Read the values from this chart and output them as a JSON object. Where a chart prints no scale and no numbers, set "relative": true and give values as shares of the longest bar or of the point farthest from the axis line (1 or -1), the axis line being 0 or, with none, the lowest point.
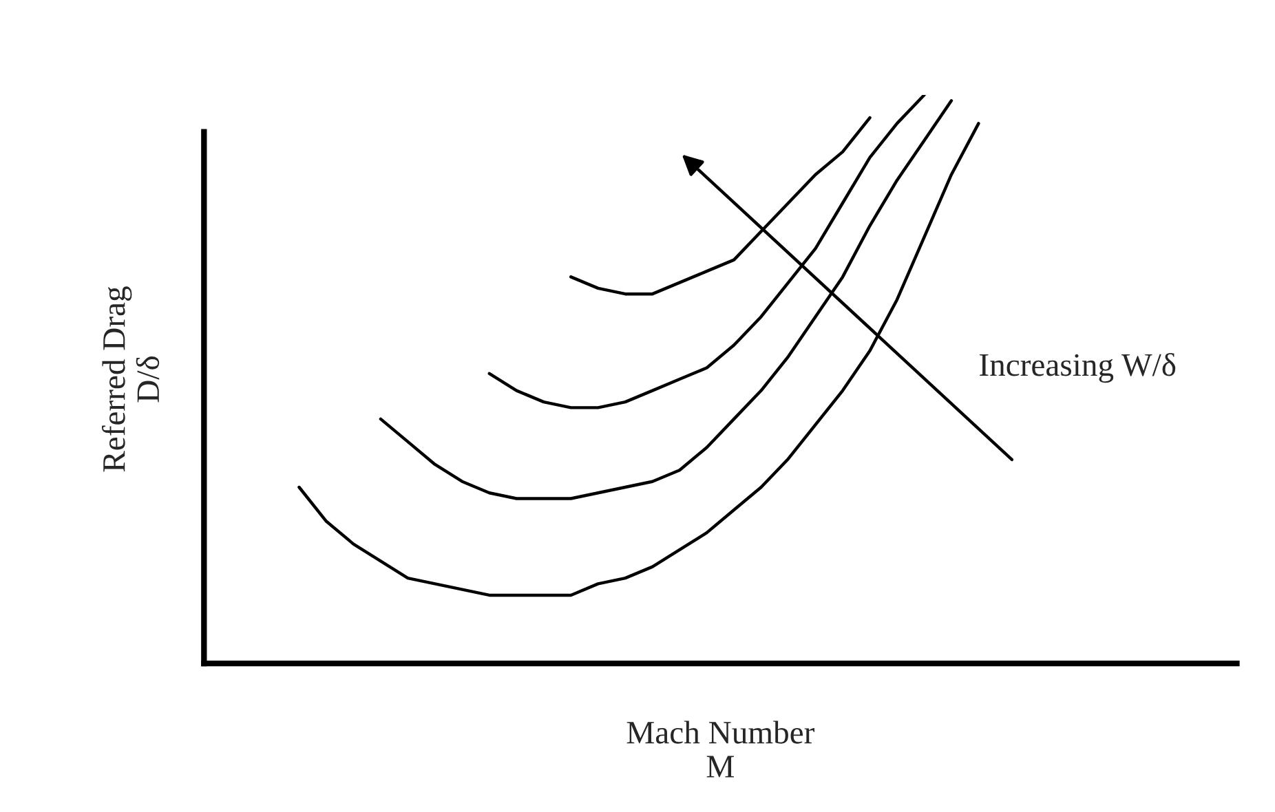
{
  "chart_data": {
    "type": "line",
    "relative": true,
    "xlabel": "Mach Number\nM",
    "ylabel": "Referred Drag\nD/δ",
    "annotations": [
      "Increasing W/δ"
    ],
    "categories": [
      null,
      null,
      null,
      null,
      null,
      null,
      null,
      null,
      null,
      null,
      null,
      null,
      null,
      null,
      null,
      null,
      null,
      null,
      null,
      null,
      null,
      null,
      null,
      null,
      null,
      null,
      null,
      null,
      null,
      null,
      null,
      null,
      null,
      null,
      null,
      null,
      null,
      null
    ],
    "series": [
      {
        "color": "#000000",
        "values": [
          null,
          null,
          null,
          null,
          null,
          null,
          null,
          null,
          null,
          null,
          null,
          null,
          null,
          0.68,
          0.66,
          0.65,
          0.65,
          0.67,
          0.69,
          0.71,
          0.76,
          0.81,
          0.86,
          0.9,
          0.96,
          null,
          null,
          null,
          null,
          null,
          null,
          null,
          null,
          null,
          null,
          null,
          null,
          null
        ]
      },
      {
        "color": "#000000",
        "values": [
          null,
          null,
          null,
          null,
          null,
          null,
          null,
          null,
          null,
          null,
          0.51,
          0.48,
          0.46,
          0.45,
          0.45,
          0.46,
          0.48,
          0.5,
          0.52,
          0.56,
          0.61,
          0.67,
          0.73,
          0.81,
          0.89,
          0.95,
          1.0,
          null,
          null,
          null,
          null,
          null,
          null,
          null,
          null,
          null,
          null,
          null
        ]
      },
      {
        "color": "#000000",
        "values": [
          null,
          null,
          null,
          null,
          null,
          null,
          0.43,
          0.39,
          0.35,
          0.32,
          0.3,
          0.29,
          0.29,
          0.29,
          0.3,
          0.31,
          0.32,
          0.34,
          0.38,
          0.43,
          0.48,
          0.54,
          0.61,
          0.68,
          0.77,
          0.85,
          0.92,
          0.99,
          null,
          null,
          null,
          null,
          null,
          null,
          null,
          null,
          null,
          null
        ]
      },
      {
        "color": "#000000",
        "values": [
          null,
          null,
          null,
          0.31,
          0.25,
          0.21,
          0.18,
          0.15,
          0.14,
          0.13,
          0.12,
          0.12,
          0.12,
          0.12,
          0.14,
          0.15,
          0.17,
          0.2,
          0.23,
          0.27,
          0.31,
          0.36,
          0.42,
          0.48,
          0.55,
          0.64,
          0.75,
          0.86,
          0.95,
          null,
          null,
          null,
          null,
          null,
          null,
          null,
          null,
          null
        ]
      }
    ]
  }
}
